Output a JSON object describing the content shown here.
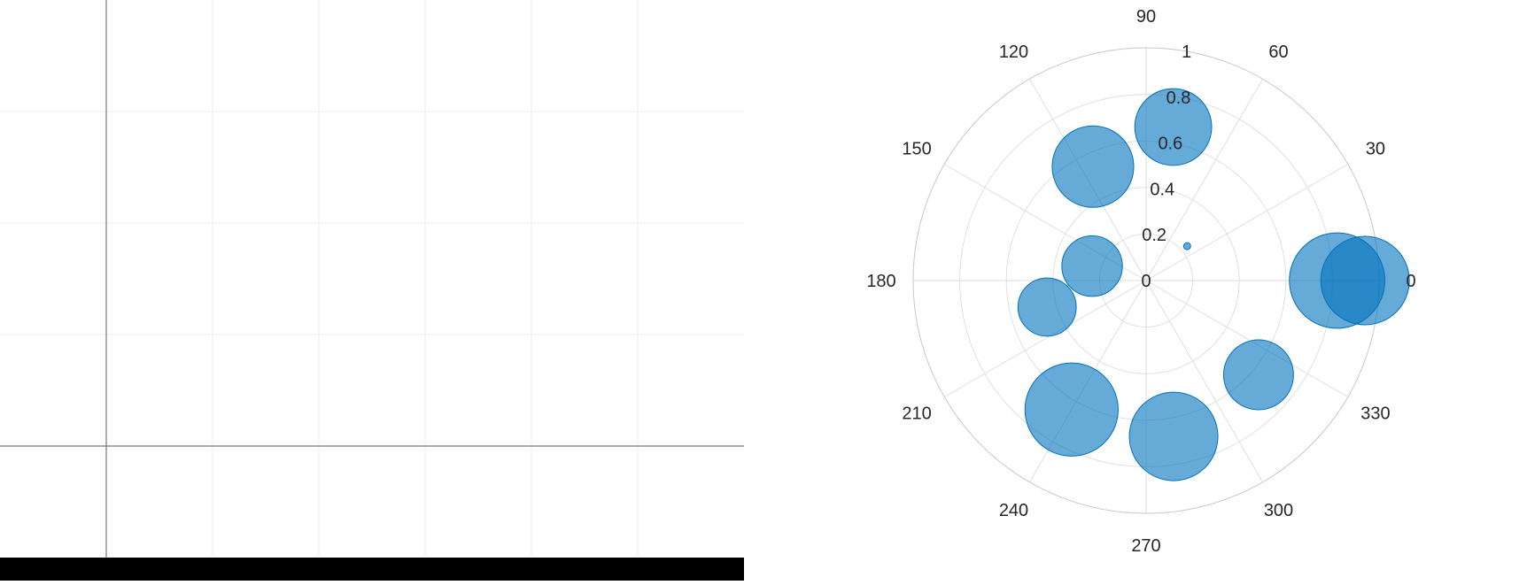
{
  "chart_data": [
    {
      "type": "line",
      "title": "",
      "xlabel": "",
      "ylabel": "",
      "grid": true,
      "series": []
    },
    {
      "type": "scatter",
      "subtype": "polar-bubble",
      "title": "",
      "theta_unit": "degrees",
      "theta_ticks": [
        "0",
        "30",
        "60",
        "90",
        "120",
        "150",
        "180",
        "210",
        "240",
        "270",
        "300",
        "330"
      ],
      "r_ticks": [
        "0",
        "0.2",
        "0.4",
        "0.6",
        "0.8",
        "1"
      ],
      "r_lim": [
        0,
        1
      ],
      "grid": true,
      "marker_color": "#0072BD",
      "marker_alpha": 0.6,
      "points": [
        {
          "theta": 0,
          "r": 0.94,
          "size": 0.38
        },
        {
          "theta": 0,
          "r": 0.82,
          "size": 0.41
        },
        {
          "theta": 40,
          "r": 0.23,
          "size": 0.03
        },
        {
          "theta": 80,
          "r": 0.67,
          "size": 0.33
        },
        {
          "theta": 115,
          "r": 0.54,
          "size": 0.35
        },
        {
          "theta": 165,
          "r": 0.24,
          "size": 0.26
        },
        {
          "theta": 195,
          "r": 0.44,
          "size": 0.25
        },
        {
          "theta": 240,
          "r": 0.64,
          "size": 0.4
        },
        {
          "theta": 280,
          "r": 0.68,
          "size": 0.38
        },
        {
          "theta": 320,
          "r": 0.63,
          "size": 0.3
        }
      ]
    }
  ]
}
